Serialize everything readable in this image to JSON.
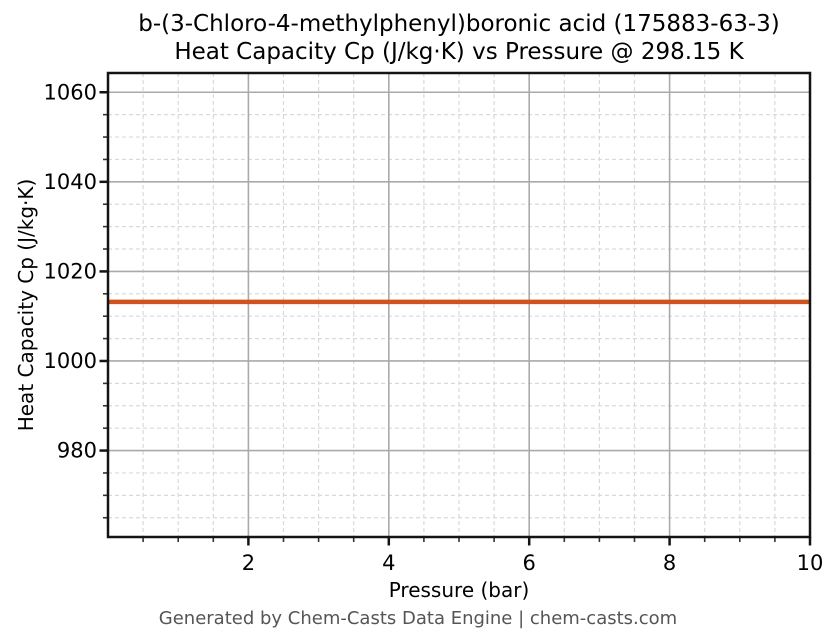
{
  "chart_data": {
    "type": "line",
    "title_line1": "b-(3-Chloro-4-methylphenyl)boronic acid (175883-63-3)",
    "title_line2": "Heat Capacity Cp (J/kg·K) vs Pressure @ 298.15 K",
    "xlabel": "Pressure (bar)",
    "ylabel": "Heat Capacity Cp (J/kg·K)",
    "footer": "Generated by Chem-Casts Data Engine | chem-casts.com",
    "xlim": [
      0,
      10
    ],
    "ylim": [
      960.7,
      1064.3
    ],
    "x_major_ticks": [
      2,
      4,
      6,
      8,
      10
    ],
    "x_minor_step": 0.5,
    "y_major_ticks": [
      980,
      1000,
      1020,
      1040,
      1060
    ],
    "y_minor_step": 5,
    "grid": {
      "major_color": "#aaaaaa",
      "minor_color": "#d9d9d9",
      "minor_dashed": true
    },
    "colors": {
      "line": "#d0521e",
      "spine": "#141414",
      "tick_label": "#000000",
      "footer_text": "#555555"
    },
    "series": [
      {
        "name": "Heat Capacity Cp",
        "color": "#d0521e",
        "x": [
          0,
          10
        ],
        "values": [
          1013.2,
          1013.2
        ]
      }
    ]
  }
}
